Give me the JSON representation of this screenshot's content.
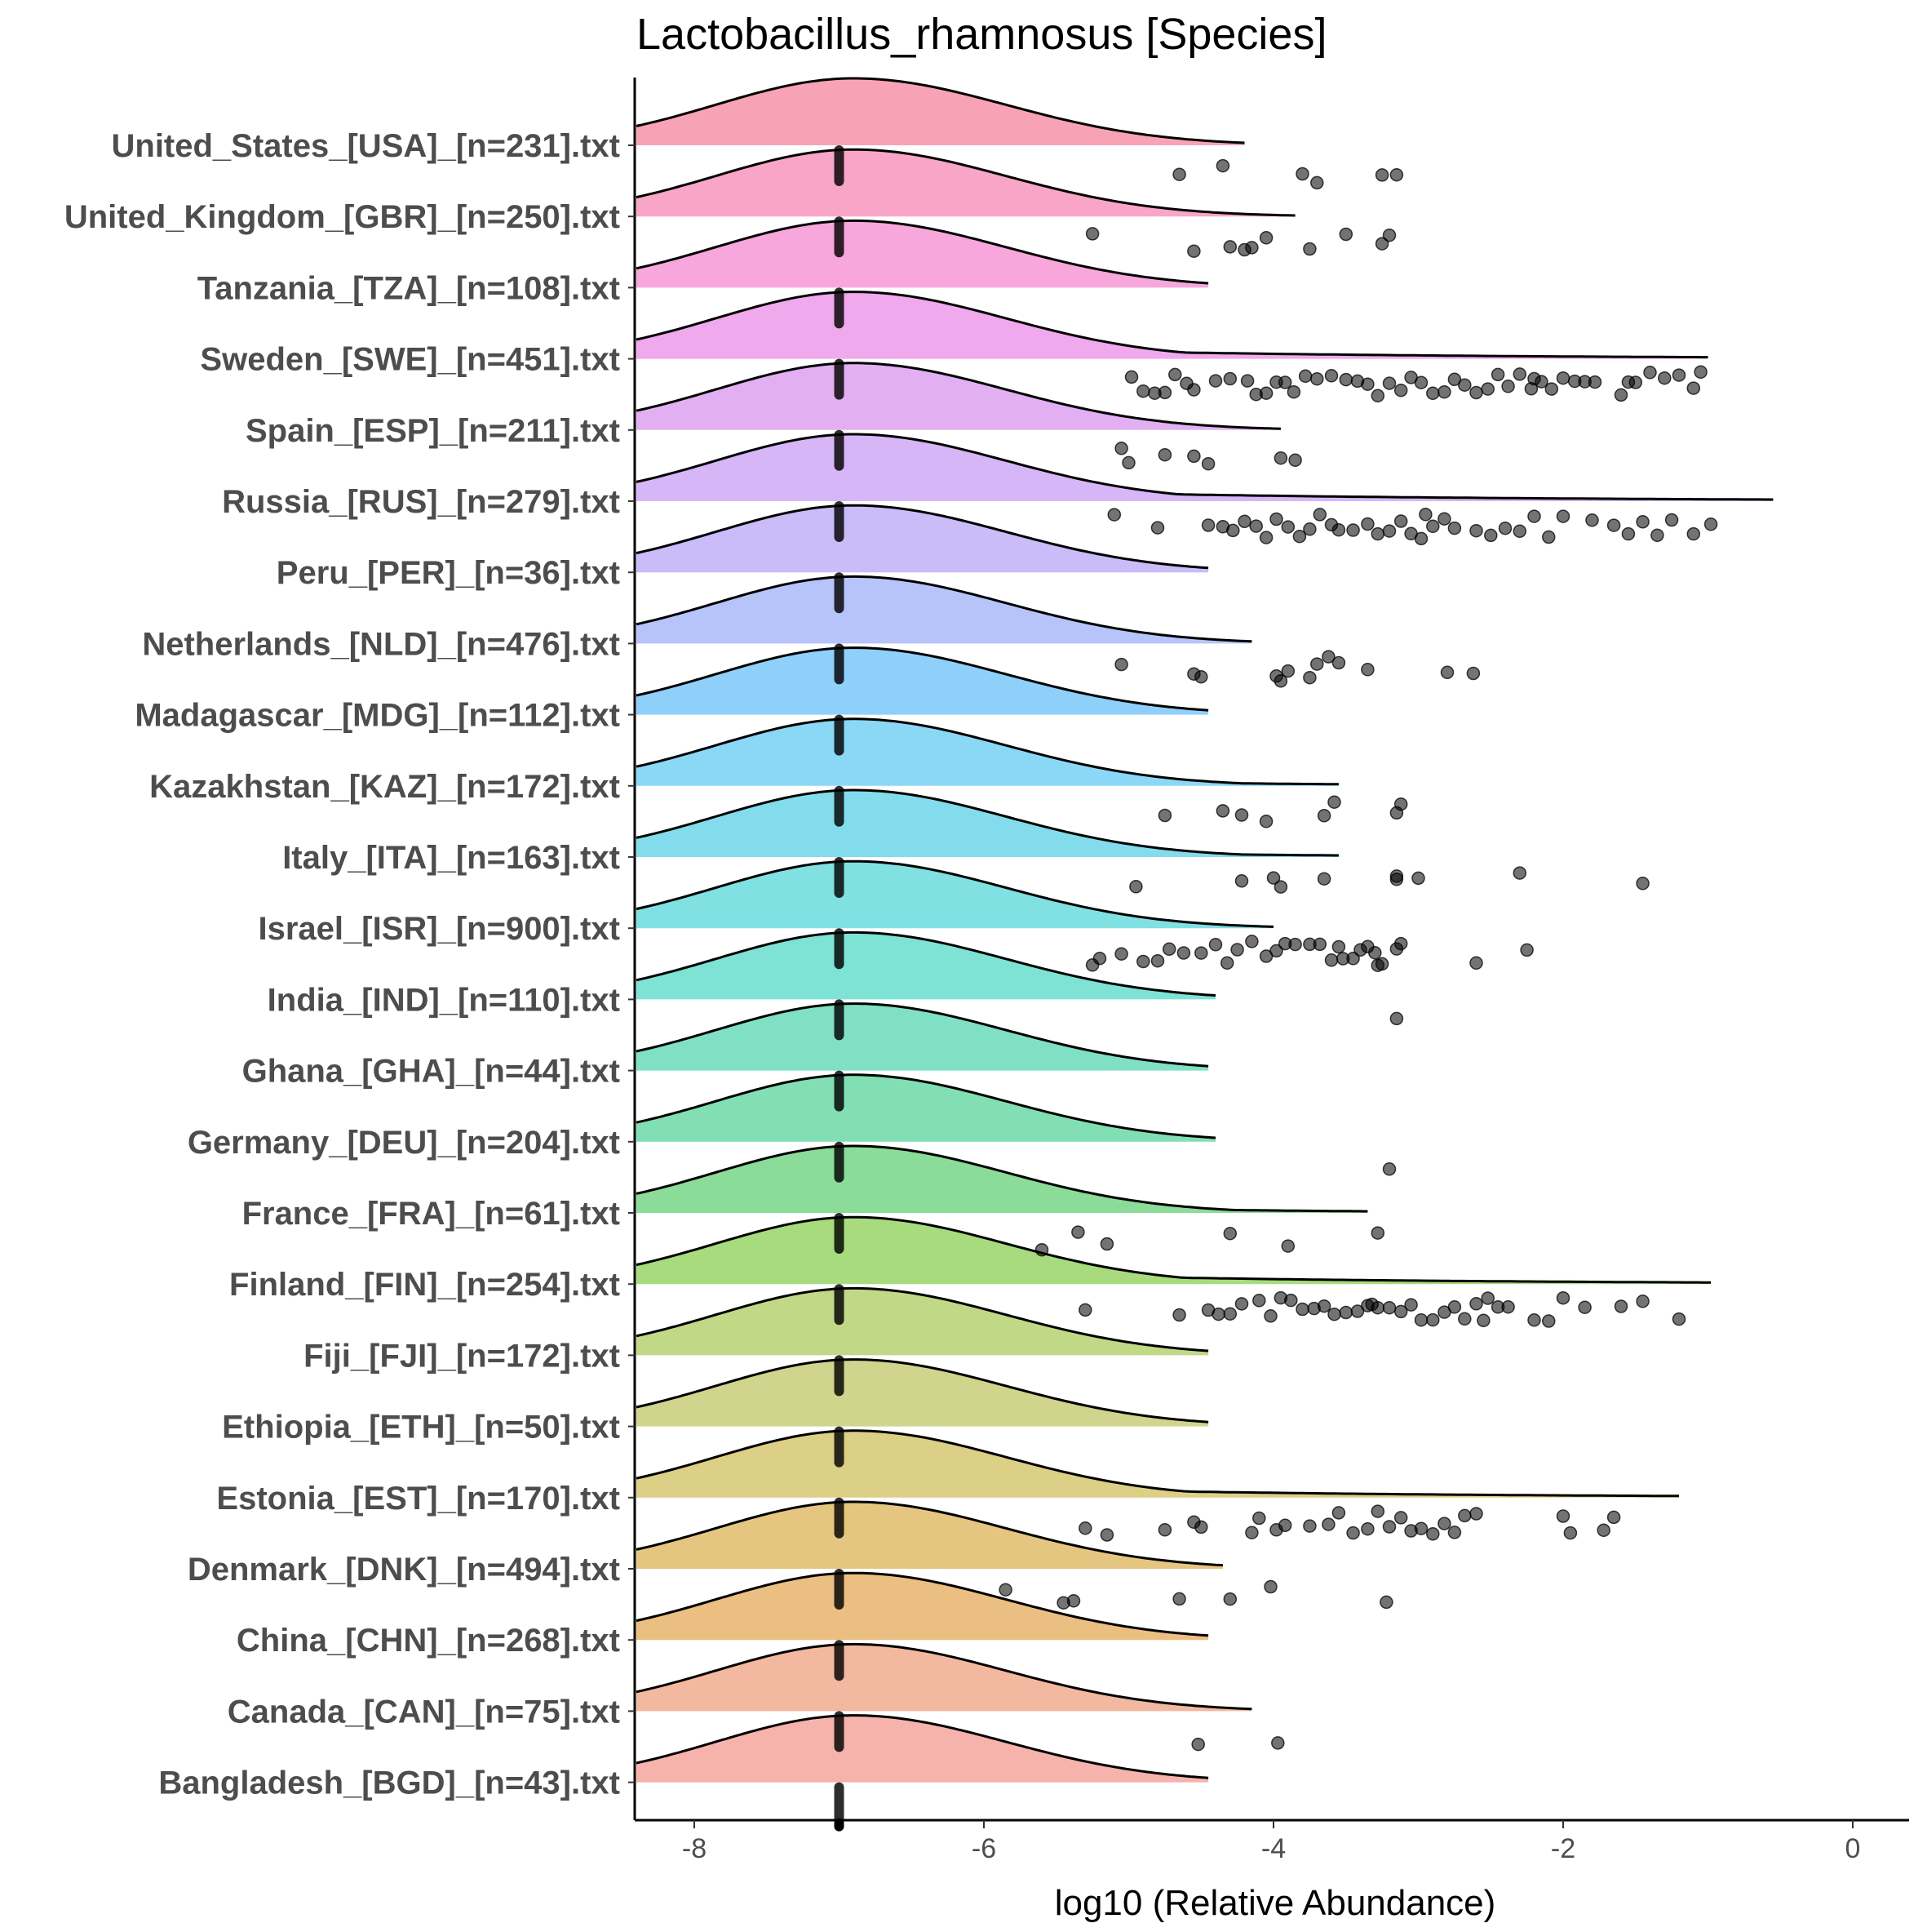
{
  "chart_data": {
    "type": "ridgeline",
    "title": "Lactobacillus_rhamnosus [Species]",
    "xlabel": "log10 (Relative Abundance)",
    "ylabel": "",
    "xlim": [
      -8.4,
      0.4
    ],
    "xticks": [
      -8,
      -6,
      -4,
      -2,
      0
    ],
    "xtick_labels": [
      "-8",
      "-6",
      "-4",
      "-2",
      "0"
    ],
    "median_value": -7.0,
    "series": [
      {
        "name": "United_States_[USA]_[n=231].txt",
        "color": "#F8A3B5",
        "peak": -6.9,
        "tail_end": -4.2,
        "points": [
          -4.65,
          -4.35,
          -3.8,
          -3.7,
          -3.25,
          -3.15
        ]
      },
      {
        "name": "United_Kingdom_[GBR]_[n=250].txt",
        "color": "#F9A5C8",
        "peak": -6.9,
        "tail_end": -3.85,
        "points": [
          -5.25,
          -4.55,
          -4.3,
          -4.2,
          -4.15,
          -4.05,
          -3.75,
          -3.5,
          -3.25,
          -3.2
        ]
      },
      {
        "name": "Tanzania_[TZA]_[n=108].txt",
        "color": "#F7A7DC",
        "peak": -6.9,
        "tail_end": -4.45,
        "points": []
      },
      {
        "name": "Sweden_[SWE]_[n=451].txt",
        "color": "#EFA9EC",
        "peak": -6.9,
        "tail_end": -1.0,
        "points": [
          -4.98,
          -4.9,
          -4.82,
          -4.75,
          -4.68,
          -4.6,
          -4.55,
          -4.4,
          -4.3,
          -4.18,
          -4.12,
          -4.05,
          -3.98,
          -3.92,
          -3.86,
          -3.78,
          -3.6,
          -3.5,
          -3.42,
          -3.35,
          -3.28,
          -3.2,
          -3.12,
          -3.05,
          -2.98,
          -2.9,
          -2.82,
          -2.75,
          -2.68,
          -2.6,
          -2.52,
          -2.45,
          -2.38,
          -2.3,
          -2.22,
          -2.15,
          -2.08,
          -2.0,
          -1.92,
          -1.85,
          -1.78,
          -1.6,
          -1.5,
          -1.4,
          -1.3,
          -1.2,
          -1.1,
          -1.05,
          -3.7,
          -2.2,
          -1.55
        ]
      },
      {
        "name": "Spain_[ESP]_[n=211].txt",
        "color": "#E2B0F2",
        "peak": -6.9,
        "tail_end": -3.95,
        "points": [
          -5.05,
          -5.0,
          -4.75,
          -4.55,
          -4.45,
          -3.95,
          -3.85
        ]
      },
      {
        "name": "Russia_[RUS]_[n=279].txt",
        "color": "#D6B6F7",
        "peak": -6.9,
        "tail_end": -0.55,
        "points": [
          -5.1,
          -4.8,
          -4.45,
          -4.35,
          -4.28,
          -4.2,
          -4.12,
          -4.05,
          -3.98,
          -3.9,
          -3.82,
          -3.75,
          -3.68,
          -3.55,
          -3.45,
          -3.35,
          -3.28,
          -3.2,
          -3.12,
          -3.05,
          -2.98,
          -2.9,
          -2.82,
          -2.75,
          -2.6,
          -2.5,
          -2.4,
          -2.3,
          -2.2,
          -2.1,
          -2.0,
          -1.8,
          -1.65,
          -1.55,
          -1.45,
          -1.35,
          -1.25,
          -1.1,
          -0.98,
          -3.6,
          -2.95
        ]
      },
      {
        "name": "Peru_[PER]_[n=36].txt",
        "color": "#C9BCF8",
        "peak": -6.9,
        "tail_end": -4.45,
        "points": []
      },
      {
        "name": "Netherlands_[NLD]_[n=476].txt",
        "color": "#B7C4F9",
        "peak": -6.9,
        "tail_end": -4.15,
        "points": [
          -5.05,
          -4.55,
          -4.5,
          -3.98,
          -3.95,
          -3.9,
          -3.75,
          -3.7,
          -3.62,
          -3.55,
          -3.35,
          -2.8,
          -2.62
        ]
      },
      {
        "name": "Madagascar_[MDG]_[n=112].txt",
        "color": "#8FD0FB",
        "peak": -6.9,
        "tail_end": -4.45,
        "points": []
      },
      {
        "name": "Kazakhstan_[KAZ]_[n=172].txt",
        "color": "#8BD8F6",
        "peak": -6.9,
        "tail_end": -3.55,
        "points": [
          -4.75,
          -4.35,
          -4.22,
          -4.05,
          -3.65,
          -3.58,
          -3.15,
          -3.12
        ]
      },
      {
        "name": "Italy_[ITA]_[n=163].txt",
        "color": "#83DCEB",
        "peak": -6.9,
        "tail_end": -3.55,
        "points": [
          -4.95,
          -4.22,
          -4.0,
          -3.95,
          -3.65,
          -3.15,
          -3.15,
          -3.0,
          -2.3,
          -1.45
        ]
      },
      {
        "name": "Israel_[ISR]_[n=900].txt",
        "color": "#80E0E2",
        "peak": -6.9,
        "tail_end": -4.0,
        "points": [
          -5.25,
          -5.2,
          -5.05,
          -4.9,
          -4.8,
          -4.72,
          -4.62,
          -4.5,
          -4.4,
          -4.32,
          -4.25,
          -4.15,
          -4.05,
          -3.98,
          -3.92,
          -3.85,
          -3.75,
          -3.68,
          -3.6,
          -3.52,
          -3.45,
          -3.4,
          -3.35,
          -3.3,
          -3.25,
          -3.15,
          -3.12,
          -2.6,
          -2.25,
          -3.28,
          -3.55
        ]
      },
      {
        "name": "India_[IND]_[n=110].txt",
        "color": "#7EE3D4",
        "peak": -6.9,
        "tail_end": -4.4,
        "points": [
          -3.15
        ]
      },
      {
        "name": "Ghana_[GHA]_[n=44].txt",
        "color": "#80E0C4",
        "peak": -6.9,
        "tail_end": -4.45,
        "points": []
      },
      {
        "name": "Germany_[DEU]_[n=204].txt",
        "color": "#82DFB3",
        "peak": -6.9,
        "tail_end": -4.4,
        "points": [
          -3.2
        ]
      },
      {
        "name": "France_[FRA]_[n=61].txt",
        "color": "#8ADC98",
        "peak": -6.9,
        "tail_end": -3.35,
        "points": [
          -5.6,
          -5.35,
          -5.15,
          -4.3,
          -3.9,
          -3.28
        ]
      },
      {
        "name": "Finland_[FIN]_[n=254].txt",
        "color": "#A7DB7E",
        "peak": -6.9,
        "tail_end": -0.98,
        "points": [
          -5.3,
          -4.65,
          -4.45,
          -4.38,
          -4.3,
          -4.22,
          -4.1,
          -4.02,
          -3.95,
          -3.88,
          -3.8,
          -3.72,
          -3.65,
          -3.58,
          -3.5,
          -3.42,
          -3.35,
          -3.28,
          -3.2,
          -3.12,
          -3.05,
          -2.98,
          -2.9,
          -2.82,
          -2.75,
          -2.68,
          -2.6,
          -2.52,
          -2.45,
          -2.38,
          -2.2,
          -2.1,
          -2.0,
          -1.85,
          -1.6,
          -1.45,
          -1.2,
          -3.32,
          -2.55
        ]
      },
      {
        "name": "Fiji_[FJI]_[n=172].txt",
        "color": "#C1D887",
        "peak": -6.9,
        "tail_end": -4.45,
        "points": []
      },
      {
        "name": "Ethiopia_[ETH]_[n=50].txt",
        "color": "#D0D48D",
        "peak": -6.9,
        "tail_end": -4.45,
        "points": []
      },
      {
        "name": "Estonia_[EST]_[n=170].txt",
        "color": "#DCCF86",
        "peak": -6.9,
        "tail_end": -1.2,
        "points": [
          -5.3,
          -5.15,
          -4.75,
          -4.55,
          -4.5,
          -4.15,
          -4.1,
          -3.98,
          -3.92,
          -3.75,
          -3.62,
          -3.55,
          -3.45,
          -3.35,
          -3.28,
          -3.2,
          -3.12,
          -3.05,
          -2.98,
          -2.9,
          -2.82,
          -2.75,
          -2.68,
          -2.6,
          -2.0,
          -1.95,
          -1.72,
          -1.65
        ]
      },
      {
        "name": "Denmark_[DNK]_[n=494].txt",
        "color": "#E5C681",
        "peak": -6.9,
        "tail_end": -4.35,
        "points": [
          -5.85,
          -5.45,
          -5.38,
          -4.65,
          -4.3,
          -4.02,
          -3.22
        ]
      },
      {
        "name": "China_[CHN]_[n=268].txt",
        "color": "#EBBF82",
        "peak": -6.9,
        "tail_end": -4.45,
        "points": []
      },
      {
        "name": "Canada_[CAN]_[n=75].txt",
        "color": "#F2B9A0",
        "peak": -6.9,
        "tail_end": -4.15,
        "points": [
          -4.52,
          -3.97
        ]
      },
      {
        "name": "Bangladesh_[BGD]_[n=43].txt",
        "color": "#F5B3AC",
        "peak": -6.9,
        "tail_end": -4.45,
        "points": []
      }
    ]
  }
}
